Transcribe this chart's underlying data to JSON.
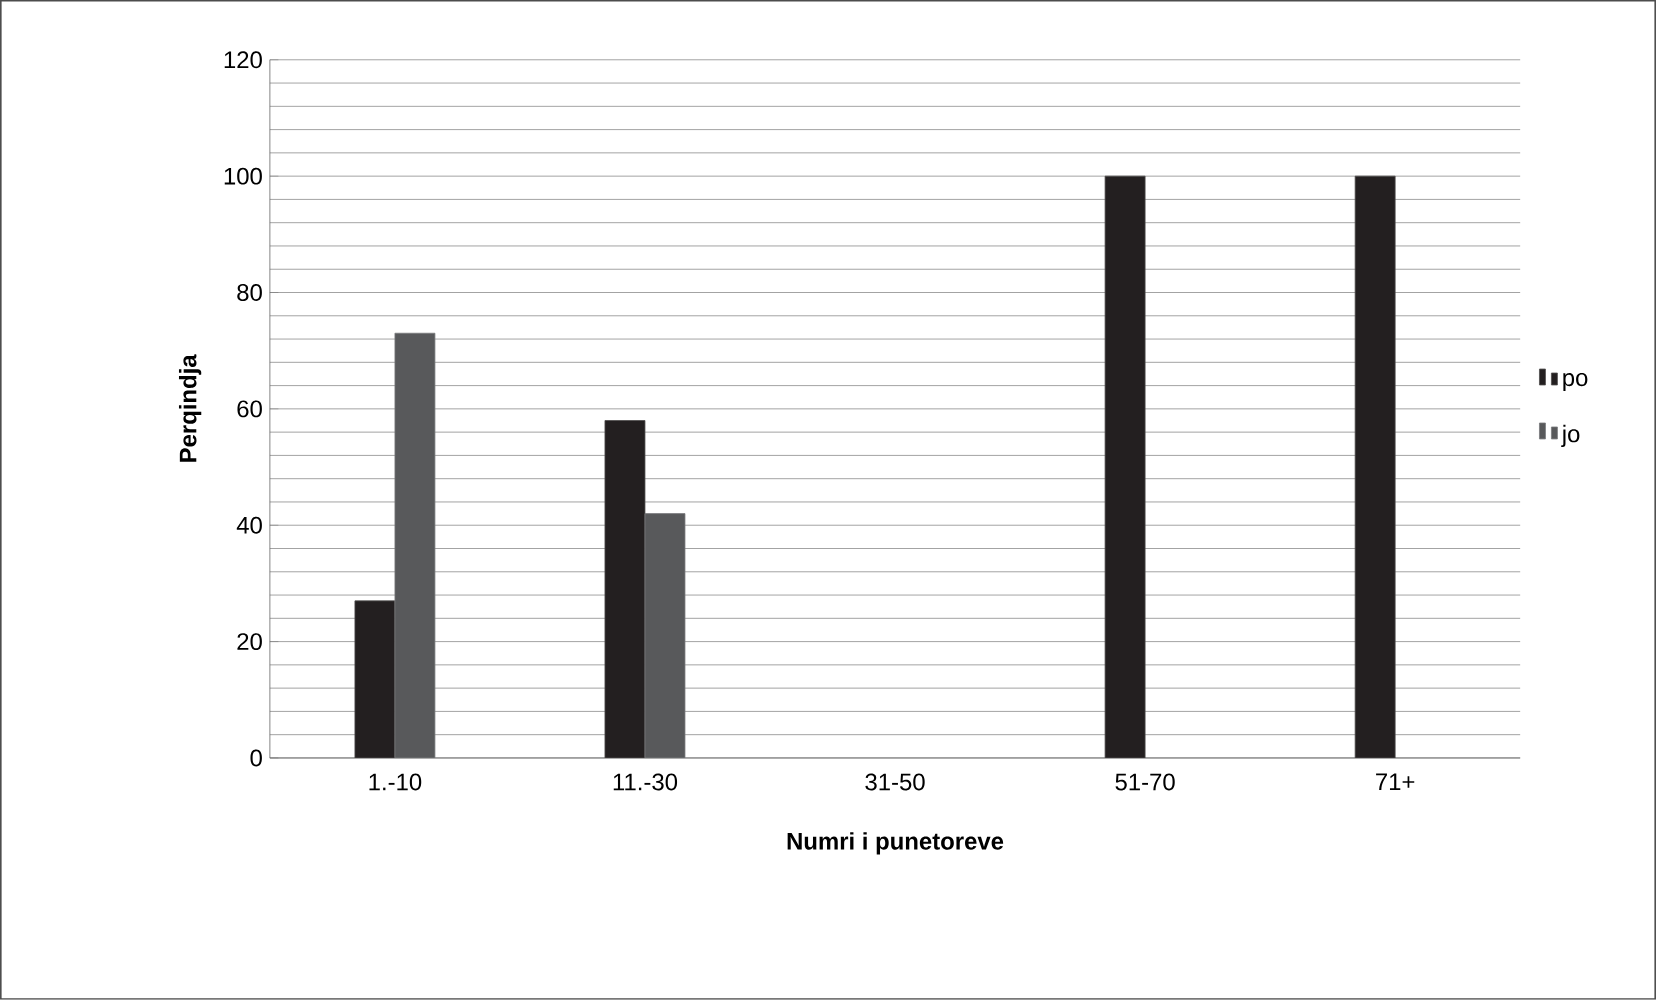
{
  "chart_data": {
    "type": "bar",
    "xlabel": "Numri i punetoreve",
    "ylabel": "Perqindja",
    "categories": [
      "1.-10",
      "11.-30",
      "31-50",
      "51-70",
      "71+"
    ],
    "series": [
      {
        "name": "po",
        "color": "#231f20",
        "values": [
          27,
          58,
          null,
          100,
          100
        ]
      },
      {
        "name": "jo",
        "color": "#58595b",
        "values": [
          73,
          42,
          null,
          null,
          null
        ]
      }
    ],
    "ylim": [
      0,
      120
    ],
    "yticks": [
      0,
      20,
      40,
      60,
      80,
      100,
      120
    ],
    "grid": "y",
    "legend": "right"
  }
}
